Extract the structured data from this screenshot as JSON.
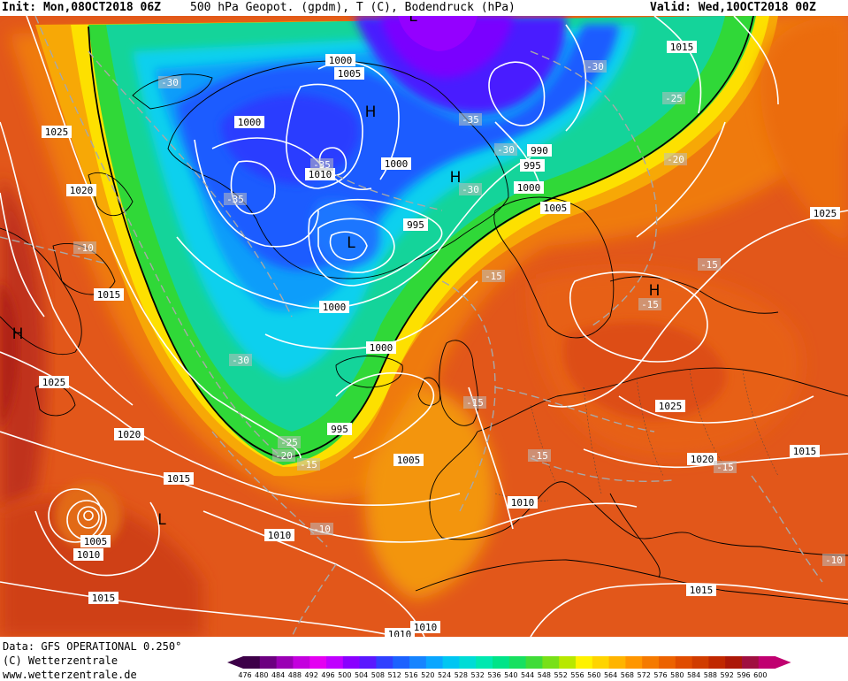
{
  "header": {
    "init": "Init: Mon,08OCT2018 06Z",
    "product": "500 hPa Geopot. (gpdm), T (C), Bodendruck (hPa)",
    "valid": "Valid: Wed,10OCT2018 00Z"
  },
  "footer": {
    "data_source": "Data: GFS OPERATIONAL 0.250°",
    "copyright": "(C) Wetterzentrale",
    "website": "www.wetterzentrale.de"
  },
  "colorbar": {
    "ticks": [
      "476",
      "480",
      "484",
      "488",
      "492",
      "496",
      "500",
      "504",
      "508",
      "512",
      "516",
      "520",
      "524",
      "528",
      "532",
      "536",
      "540",
      "544",
      "548",
      "552",
      "556",
      "560",
      "564",
      "568",
      "572",
      "576",
      "580",
      "584",
      "588",
      "592",
      "596",
      "600"
    ],
    "colors": [
      "#3d0048",
      "#6c0080",
      "#9a00b4",
      "#c400de",
      "#e400f2",
      "#c000ff",
      "#8a00ff",
      "#5a18ff",
      "#3040ff",
      "#1c62ff",
      "#1684ff",
      "#0aa6ff",
      "#00c6f2",
      "#00dcd6",
      "#00e8b0",
      "#00e488",
      "#18e060",
      "#40dc38",
      "#78e018",
      "#b8e800",
      "#fff200",
      "#ffd400",
      "#ffb400",
      "#ff9600",
      "#f57a00",
      "#ec6200",
      "#e04c00",
      "#d03c00",
      "#c02800",
      "#ac1808",
      "#a01040",
      "#c00070"
    ]
  },
  "isobar_labels": [
    {
      "id": "1015-ne",
      "text": "1015"
    },
    {
      "id": "1025-w",
      "text": "1025"
    },
    {
      "id": "1020-w",
      "text": "1020"
    },
    {
      "id": "1015-w",
      "text": "1015"
    },
    {
      "id": "1025-sw",
      "text": "1025"
    },
    {
      "id": "1020-sw",
      "text": "1020"
    },
    {
      "id": "1015-sw",
      "text": "1015"
    },
    {
      "id": "1005-sw",
      "text": "1005"
    },
    {
      "id": "1010-sw",
      "text": "1010"
    },
    {
      "id": "1015-s",
      "text": "1015"
    },
    {
      "id": "1010-sm",
      "text": "1010"
    },
    {
      "id": "1000-g1",
      "text": "1000"
    },
    {
      "id": "1005-g",
      "text": "1005"
    },
    {
      "id": "1000-g2",
      "text": "1000"
    },
    {
      "id": "1010-g",
      "text": "1010"
    },
    {
      "id": "1000-g3",
      "text": "1000"
    },
    {
      "id": "995-g",
      "text": "995"
    },
    {
      "id": "990-n",
      "text": "990"
    },
    {
      "id": "995-n",
      "text": "995"
    },
    {
      "id": "1000-n",
      "text": "1000"
    },
    {
      "id": "1005-n",
      "text": "1005"
    },
    {
      "id": "1000-c",
      "text": "1000"
    },
    {
      "id": "1000-c2",
      "text": "1000"
    },
    {
      "id": "995-c",
      "text": "995"
    },
    {
      "id": "1005-c",
      "text": "1005"
    },
    {
      "id": "1010-c",
      "text": "1010"
    },
    {
      "id": "1025-e",
      "text": "1025"
    },
    {
      "id": "1025-ce",
      "text": "1025"
    },
    {
      "id": "1020-ce",
      "text": "1020"
    },
    {
      "id": "1015-e",
      "text": "1015"
    },
    {
      "id": "1015-se",
      "text": "1015"
    },
    {
      "id": "1010-ss",
      "text": "1010"
    },
    {
      "id": "1010-sb",
      "text": "1010"
    }
  ],
  "temp_labels": [
    {
      "id": "t1",
      "text": "-30"
    },
    {
      "id": "t2",
      "text": "-30"
    },
    {
      "id": "t3",
      "text": "-25"
    },
    {
      "id": "t4",
      "text": "-35"
    },
    {
      "id": "t5",
      "text": "-35"
    },
    {
      "id": "t6",
      "text": "-35"
    },
    {
      "id": "t7",
      "text": "-30"
    },
    {
      "id": "t8",
      "text": "-30"
    },
    {
      "id": "t9",
      "text": "-20"
    },
    {
      "id": "t10",
      "text": "-10"
    },
    {
      "id": "t11",
      "text": "-15"
    },
    {
      "id": "t12",
      "text": "-15"
    },
    {
      "id": "t13",
      "text": "-15"
    },
    {
      "id": "t14",
      "text": "-30"
    },
    {
      "id": "t15",
      "text": "-15"
    },
    {
      "id": "t16",
      "text": "-25"
    },
    {
      "id": "t17",
      "text": "-20"
    },
    {
      "id": "t18",
      "text": "-15"
    },
    {
      "id": "t19",
      "text": "-15"
    },
    {
      "id": "t20",
      "text": "-15"
    },
    {
      "id": "t21",
      "text": "-10"
    },
    {
      "id": "t22",
      "text": "-10"
    }
  ],
  "pressure_centers": [
    {
      "id": "H-greenland",
      "text": "H"
    },
    {
      "id": "H-north",
      "text": "H"
    },
    {
      "id": "H-west",
      "text": "H"
    },
    {
      "id": "H-europe",
      "text": "H"
    },
    {
      "id": "L-greenland",
      "text": "L"
    },
    {
      "id": "L-atlantic",
      "text": "L"
    },
    {
      "id": "L-top",
      "text": "L"
    }
  ]
}
